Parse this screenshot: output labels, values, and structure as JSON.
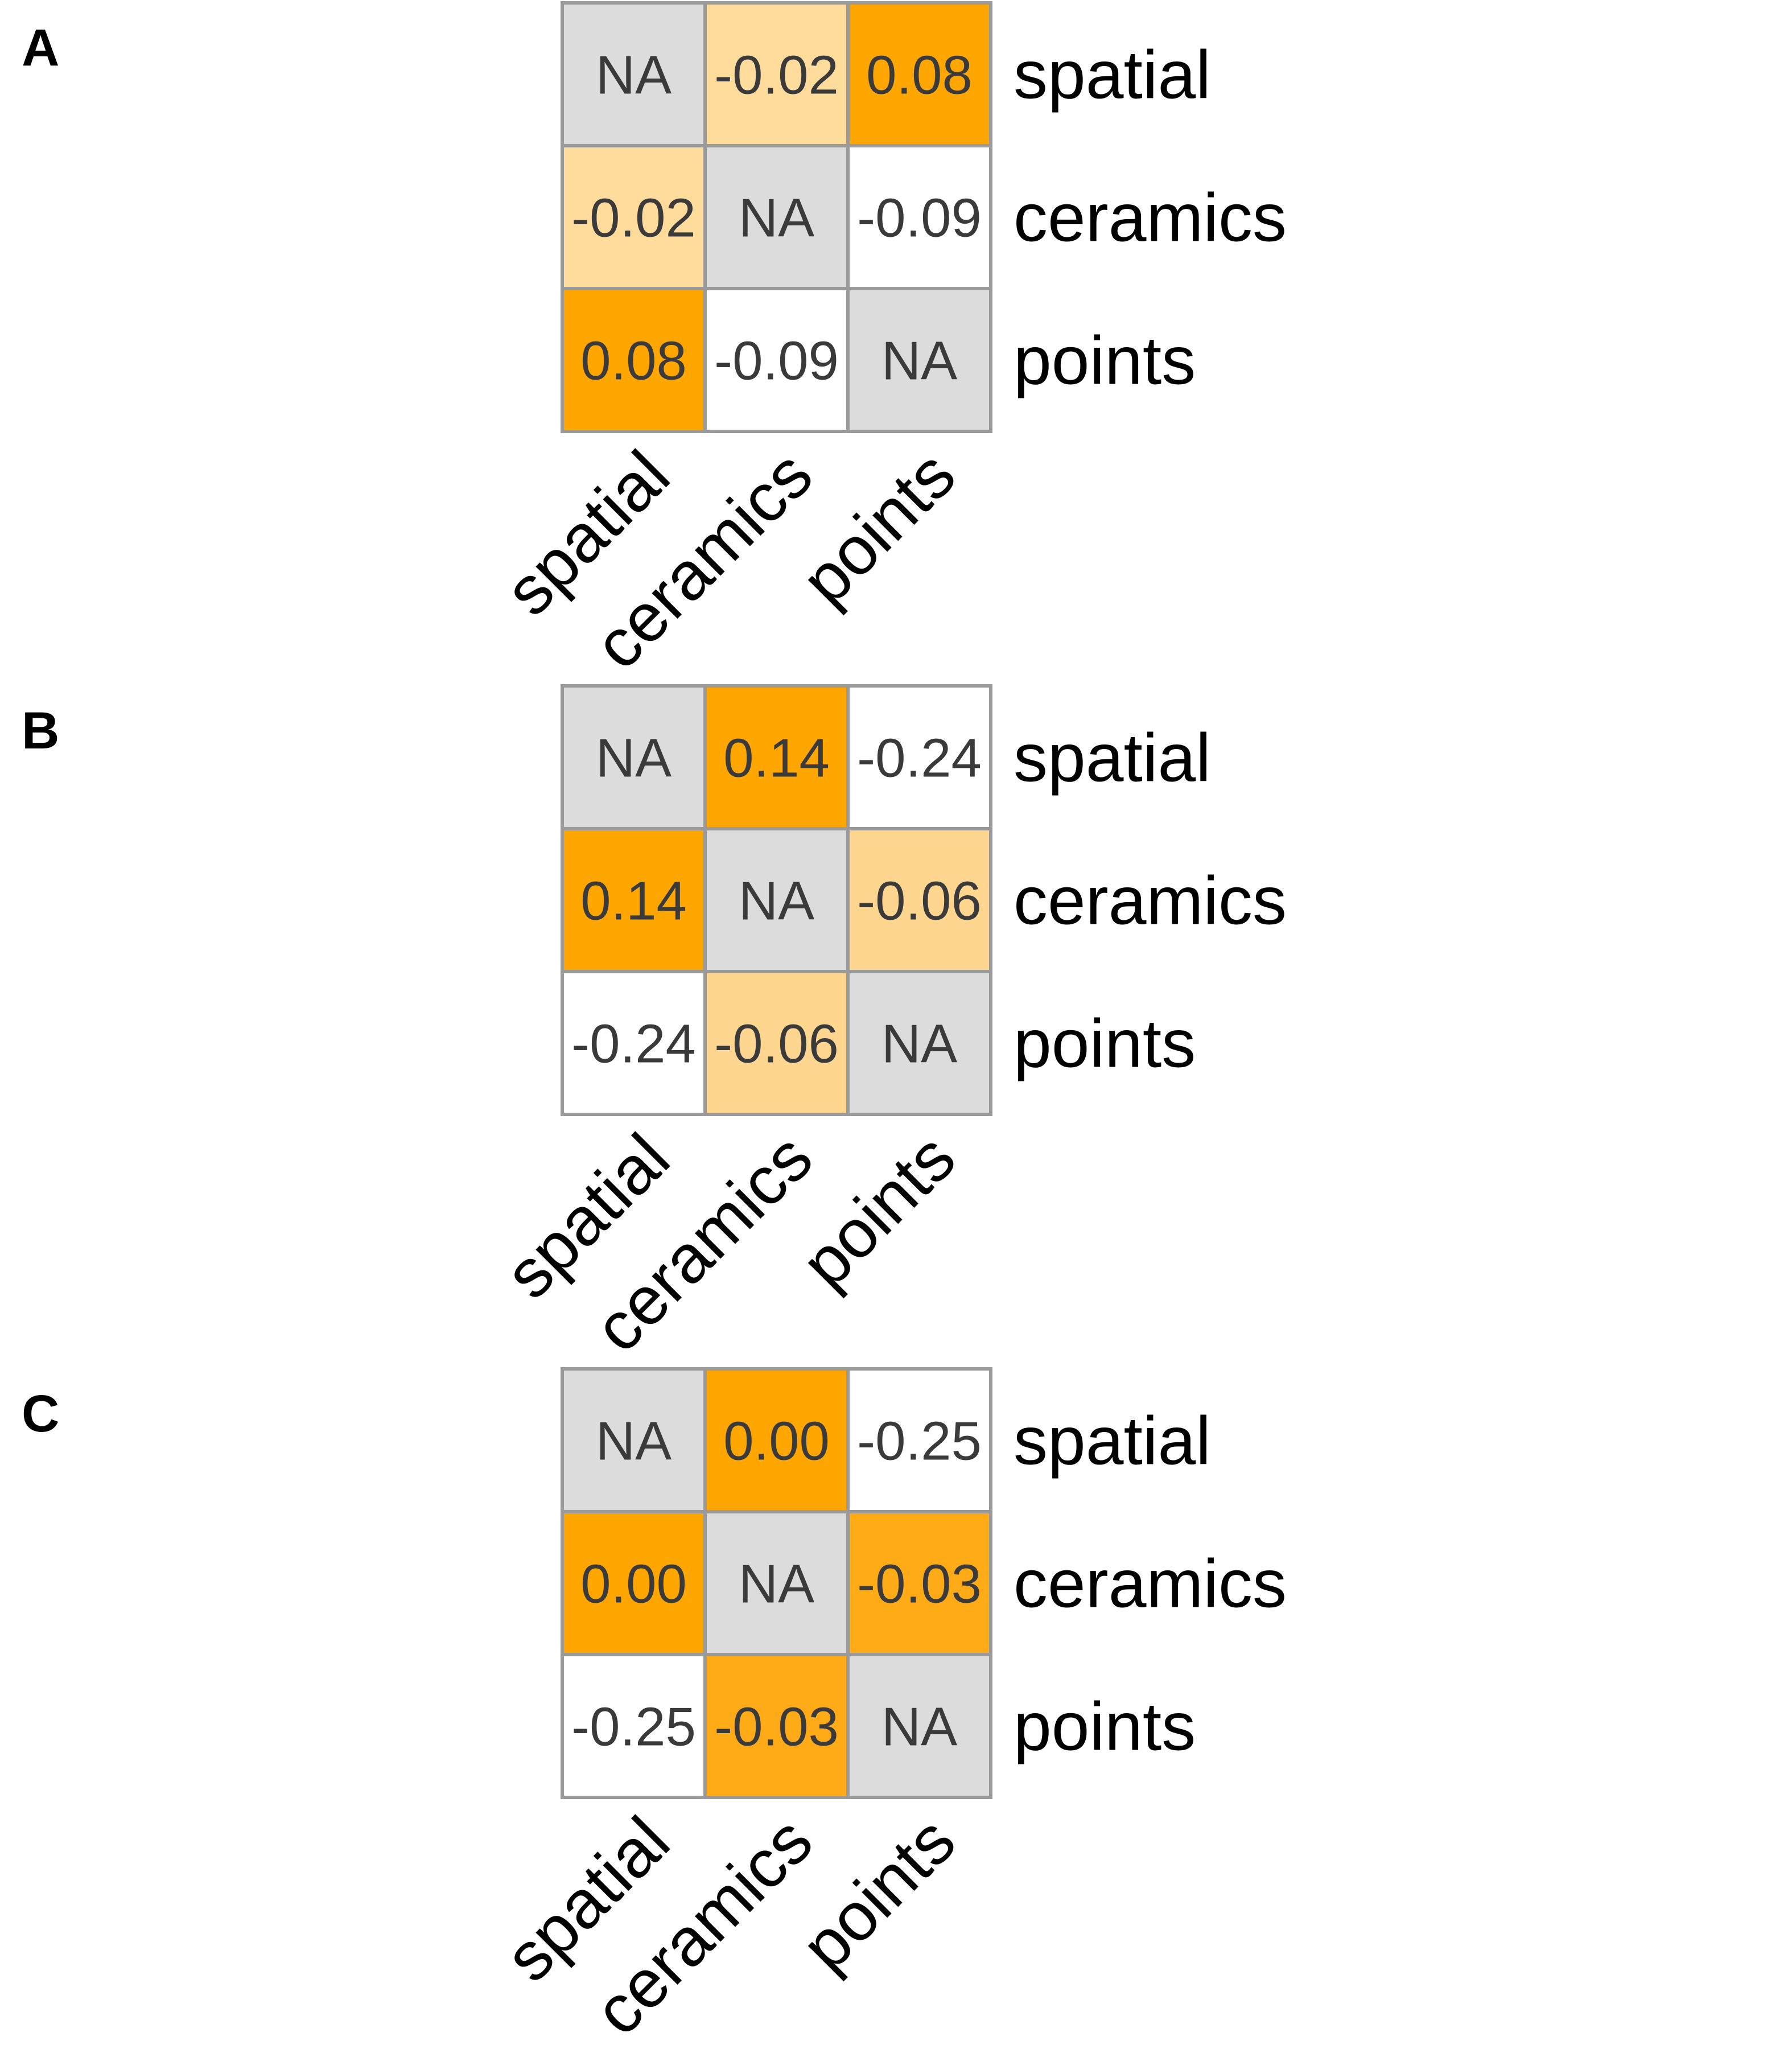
{
  "colors": {
    "na": "#dcdcdc",
    "scale": [
      "#ffffff",
      "#ffe0a8",
      "#ffd48a",
      "#ffb030",
      "#ffa600"
    ],
    "border": "#9a9a9a",
    "value_text": "#3a3a3a",
    "label_text": "#000000"
  },
  "chart_data": [
    {
      "type": "heatmap",
      "panel": "A",
      "rows": [
        "spatial",
        "ceramics",
        "points"
      ],
      "cols": [
        "spatial",
        "ceramics",
        "points"
      ],
      "values": [
        [
          null,
          -0.02,
          0.08
        ],
        [
          -0.02,
          null,
          -0.09
        ],
        [
          0.08,
          -0.09,
          null
        ]
      ],
      "labels": [
        [
          "NA",
          "-0.02",
          "0.08"
        ],
        [
          "-0.02",
          "NA",
          "-0.09"
        ],
        [
          "0.08",
          "-0.09",
          "NA"
        ]
      ],
      "levels": [
        [
          null,
          0.35,
          1.0
        ],
        [
          0.35,
          null,
          0.0
        ],
        [
          1.0,
          0.0,
          null
        ]
      ]
    },
    {
      "type": "heatmap",
      "panel": "B",
      "rows": [
        "spatial",
        "ceramics",
        "points"
      ],
      "cols": [
        "spatial",
        "ceramics",
        "points"
      ],
      "values": [
        [
          null,
          0.14,
          -0.24
        ],
        [
          0.14,
          null,
          -0.06
        ],
        [
          -0.24,
          -0.06,
          null
        ]
      ],
      "labels": [
        [
          "NA",
          "0.14",
          "-0.24"
        ],
        [
          "0.14",
          "NA",
          "-0.06"
        ],
        [
          "-0.24",
          "-0.06",
          "NA"
        ]
      ],
      "levels": [
        [
          null,
          1.0,
          0.0
        ],
        [
          1.0,
          null,
          0.45
        ],
        [
          0.0,
          0.45,
          null
        ]
      ]
    },
    {
      "type": "heatmap",
      "panel": "C",
      "rows": [
        "spatial",
        "ceramics",
        "points"
      ],
      "cols": [
        "spatial",
        "ceramics",
        "points"
      ],
      "values": [
        [
          null,
          0.0,
          -0.25
        ],
        [
          0.0,
          null,
          -0.03
        ],
        [
          -0.25,
          -0.03,
          null
        ]
      ],
      "labels": [
        [
          "NA",
          "0.00",
          "-0.25"
        ],
        [
          "0.00",
          "NA",
          "-0.03"
        ],
        [
          "-0.25",
          "-0.03",
          "NA"
        ]
      ],
      "levels": [
        [
          null,
          1.0,
          0.0
        ],
        [
          1.0,
          null,
          0.88
        ],
        [
          0.0,
          0.88,
          null
        ]
      ]
    }
  ]
}
